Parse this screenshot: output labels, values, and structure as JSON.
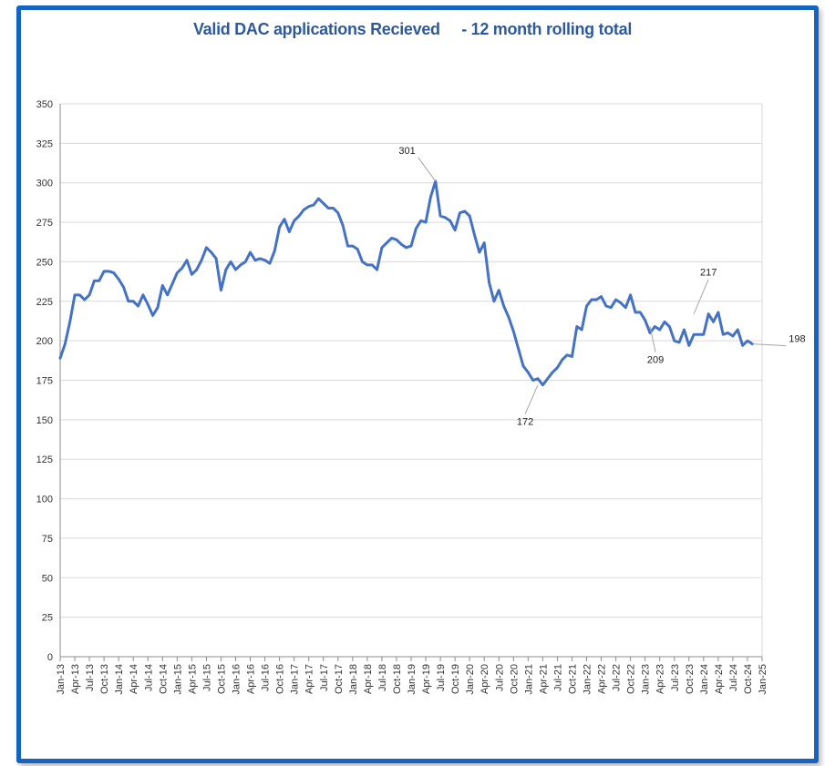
{
  "chart_data": {
    "type": "line",
    "title": "Valid DAC applications Recieved     - 12 month rolling total",
    "xlabel": "",
    "ylabel": "",
    "ylim": [
      0,
      350
    ],
    "yticks": [
      0,
      25,
      50,
      75,
      100,
      125,
      150,
      175,
      200,
      225,
      250,
      275,
      300,
      325,
      350
    ],
    "grid": true,
    "line_color": "#4472c4",
    "x_tick_labels": [
      "Jan-13",
      "Apr-13",
      "Jul-13",
      "Oct-13",
      "Jan-14",
      "Apr-14",
      "Jul-14",
      "Oct-14",
      "Jan-15",
      "Apr-15",
      "Jul-15",
      "Oct-15",
      "Jan-16",
      "Apr-16",
      "Jul-16",
      "Oct-16",
      "Jan-17",
      "Apr-17",
      "Jul-17",
      "Oct-17",
      "Jan-18",
      "Apr-18",
      "Jul-18",
      "Oct-18",
      "Jan-19",
      "Apr-19",
      "Jul-19",
      "Oct-19",
      "Jan-20",
      "Apr-20",
      "Jul-20",
      "Oct-20",
      "Jan-21",
      "Apr-21",
      "Jul-21",
      "Oct-21",
      "Jan-22",
      "Apr-22",
      "Jul-22",
      "Oct-22",
      "Jan-23",
      "Apr-23",
      "Jul-23",
      "Oct-23",
      "Jan-24",
      "Apr-24",
      "Jul-24",
      "Oct-24",
      "Jan-25"
    ],
    "series": [
      {
        "values": [
          189,
          198,
          212,
          229,
          229,
          226,
          229,
          238,
          238,
          244,
          244,
          243,
          239,
          234,
          225,
          225,
          222,
          229,
          223,
          216,
          221,
          235,
          229,
          236,
          243,
          246,
          251,
          242,
          245,
          251,
          259,
          256,
          252,
          232,
          245,
          250,
          245,
          248,
          250,
          256,
          251,
          252,
          251,
          249,
          257,
          272,
          277,
          269,
          276,
          279,
          283,
          285,
          286,
          290,
          287,
          284,
          284,
          281,
          273,
          260,
          260,
          258,
          250,
          248,
          248,
          245,
          259,
          262,
          265,
          264,
          261,
          259,
          260,
          271,
          276,
          275,
          291,
          301,
          279,
          278,
          276,
          270,
          281,
          282,
          279,
          267,
          256,
          262,
          237,
          225,
          232,
          222,
          215,
          206,
          195,
          184,
          180,
          175,
          176,
          172,
          176,
          180,
          183,
          188,
          191,
          190,
          209,
          207,
          222,
          226,
          226,
          228,
          222,
          221,
          226,
          224,
          221,
          229,
          218,
          218,
          213,
          205,
          209,
          207,
          212,
          209,
          200,
          199,
          207,
          197,
          204,
          204,
          204,
          217,
          212,
          218,
          204,
          205,
          203,
          207,
          197,
          200,
          198
        ],
        "color": "#4472c4"
      }
    ],
    "annotations": [
      {
        "text": "301",
        "x": "Jun-19",
        "y": 301
      },
      {
        "text": "172",
        "x": "Mar-21",
        "y": 172
      },
      {
        "text": "209",
        "x": "Feb-23",
        "y": 209
      },
      {
        "text": "217",
        "x": "Nov-23",
        "y": 217
      },
      {
        "text": "198",
        "x": "Nov-24",
        "y": 198
      }
    ]
  }
}
